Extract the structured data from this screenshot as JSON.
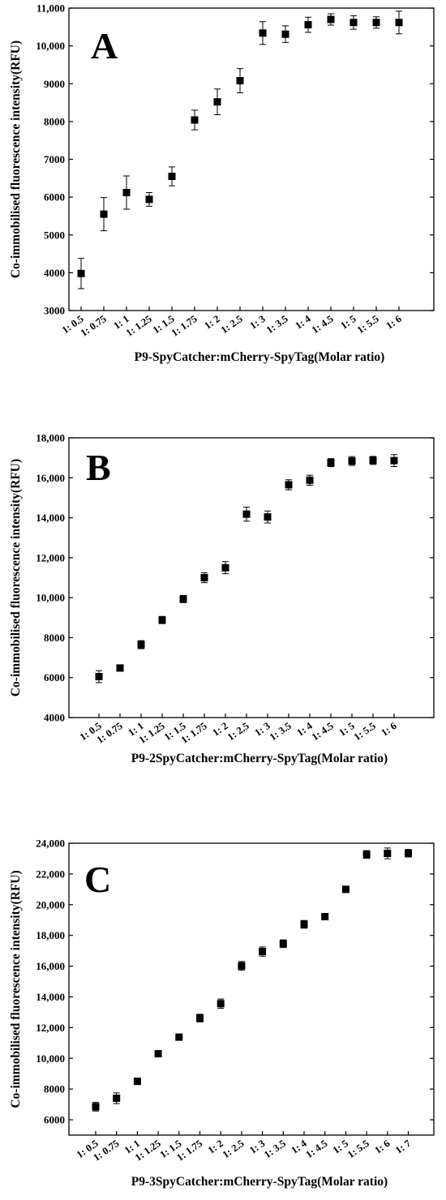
{
  "chart_data": [
    {
      "type": "scatter",
      "panel_label": "A",
      "xlabel": "P9-SpyCatcher:mCherry-SpyTag(Molar ratio)",
      "ylabel": "Co-immobilised fluorescence intensity(RFU)",
      "categories": [
        "1: 0.5",
        "1: 0.75",
        "1: 1",
        "1: 1.25",
        "1: 1.5",
        "1: 1.75",
        "1: 2",
        "1: 2.5",
        "1: 3",
        "1: 3.5",
        "1: 4",
        "1: 4.5",
        "1: 5",
        "1: 5.5",
        "1: 6"
      ],
      "values": [
        3980,
        5550,
        6120,
        5940,
        6550,
        8040,
        8520,
        9080,
        10340,
        10310,
        10560,
        10700,
        10620,
        10620,
        10620
      ],
      "errors": [
        400,
        440,
        440,
        180,
        250,
        260,
        340,
        320,
        300,
        220,
        200,
        150,
        180,
        150,
        300
      ],
      "ylim": [
        3000,
        11000
      ],
      "yticks": [
        3000,
        4000,
        5000,
        6000,
        7000,
        8000,
        9000,
        10000,
        11000
      ],
      "ytick_labels": [
        "3000",
        "4000",
        "5000",
        "6000",
        "7000",
        "8000",
        "9000",
        "10,000",
        "11,000"
      ],
      "grid": false,
      "marker_color": "#000000"
    },
    {
      "type": "scatter",
      "panel_label": "B",
      "xlabel": "P9-2SpyCatcher:mCherry-SpyTag(Molar ratio)",
      "ylabel": "Co-immobilised fluorescence intensity(RFU)",
      "categories": [
        "1: 0.5",
        "1: 0.75",
        "1: 1",
        "1: 1.25",
        "1: 1.5",
        "1: 1.75",
        "1: 2",
        "1: 2.5",
        "1: 3",
        "1: 3.5",
        "1: 4",
        "1: 4.5",
        "1: 5",
        "1: 5.5",
        "1: 6"
      ],
      "values": [
        6050,
        6480,
        7650,
        8880,
        9930,
        11000,
        11500,
        14180,
        14040,
        15650,
        15880,
        16760,
        16840,
        16870,
        16860
      ],
      "errors": [
        300,
        150,
        200,
        180,
        180,
        250,
        300,
        350,
        300,
        250,
        250,
        200,
        220,
        200,
        300
      ],
      "ylim": [
        4000,
        18000
      ],
      "yticks": [
        4000,
        6000,
        8000,
        10000,
        12000,
        14000,
        16000,
        18000
      ],
      "ytick_labels": [
        "4000",
        "6000",
        "8000",
        "10,000",
        "12,000",
        "14,000",
        "16,000",
        "18,000"
      ],
      "grid": false,
      "marker_color": "#000000"
    },
    {
      "type": "scatter",
      "panel_label": "C",
      "xlabel": "P9-3SpyCatcher:mCherry-SpyTag(Molar ratio)",
      "ylabel": "Co-immobilised fluorescence intensity(RFU)",
      "categories": [
        "1: 0.5",
        "1: 0.75",
        "1: 1",
        "1: 1.25",
        "1: 1.5",
        "1: 1.75",
        "1: 2",
        "1: 2.5",
        "1: 3",
        "1: 3.5",
        "1: 4",
        "1: 4.5",
        "1: 5",
        "1: 5.5",
        "1: 6",
        "1: 7"
      ],
      "values": [
        6850,
        7400,
        8500,
        10300,
        11380,
        12620,
        13560,
        16020,
        16950,
        17460,
        18720,
        19220,
        21000,
        23270,
        23340,
        23350
      ],
      "errors": [
        280,
        350,
        200,
        180,
        170,
        250,
        300,
        280,
        300,
        250,
        250,
        200,
        200,
        250,
        350,
        250
      ],
      "ylim": [
        5000,
        24000
      ],
      "yticks": [
        6000,
        8000,
        10000,
        12000,
        14000,
        16000,
        18000,
        20000,
        22000,
        24000
      ],
      "ytick_labels": [
        "6000",
        "8000",
        "10,000",
        "12,000",
        "14,000",
        "16,000",
        "18,000",
        "20,000",
        "22,000",
        "24,000"
      ],
      "grid": false,
      "marker_color": "#000000"
    }
  ]
}
